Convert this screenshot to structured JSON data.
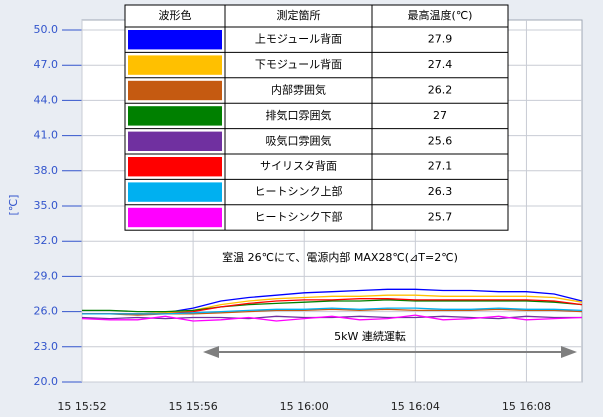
{
  "chart_data": {
    "type": "line",
    "ylabel": "[℃]",
    "x": [
      "15 15:52",
      "15 15:53",
      "15 15:54",
      "15 15:55",
      "15 15:56",
      "15 15:57",
      "15 15:58",
      "15 15:59",
      "15 16:00",
      "15 16:01",
      "15 16:02",
      "15 16:03",
      "15 16:04",
      "15 16:05",
      "15 16:06",
      "15 16:07",
      "15 16:08",
      "15 16:09",
      "15 16:10"
    ],
    "xlim": [
      "15 15:52",
      "15 16:10"
    ],
    "xticks": [
      "15 15:52",
      "15 15:56",
      "15 16:00",
      "15 16:04",
      "15 16:08"
    ],
    "ylim": [
      20,
      50
    ],
    "yticks": [
      {
        "value": 20,
        "label": "20.0"
      },
      {
        "value": 23,
        "label": "23.0"
      },
      {
        "value": 26,
        "label": "26.0"
      },
      {
        "value": 29,
        "label": "29.0"
      },
      {
        "value": 32,
        "label": "32.0"
      },
      {
        "value": 35,
        "label": "35.0"
      },
      {
        "value": 38,
        "label": "38.0"
      },
      {
        "value": 41,
        "label": "41.0"
      },
      {
        "value": 44,
        "label": "44.0"
      },
      {
        "value": 47,
        "label": "47.0"
      },
      {
        "value": 50,
        "label": "50.0"
      }
    ],
    "grid": true,
    "legend_header": [
      "波形色",
      "測定箇所",
      "最高温度(℃)"
    ],
    "series": [
      {
        "name": "上モジュール背面",
        "color": "#0000ff",
        "max": 27.9,
        "values": [
          25.8,
          25.8,
          25.8,
          25.9,
          26.3,
          26.9,
          27.2,
          27.4,
          27.6,
          27.7,
          27.8,
          27.9,
          27.9,
          27.8,
          27.8,
          27.7,
          27.7,
          27.5,
          26.9
        ]
      },
      {
        "name": "下モジュール背面",
        "color": "#ffc000",
        "max": 27.4,
        "values": [
          25.8,
          25.8,
          25.8,
          25.9,
          26.1,
          26.6,
          26.9,
          27.1,
          27.2,
          27.3,
          27.3,
          27.4,
          27.4,
          27.3,
          27.3,
          27.3,
          27.3,
          27.2,
          26.8
        ]
      },
      {
        "name": "内部雰囲気",
        "color": "#c55a11",
        "max": 26.2,
        "values": [
          25.8,
          25.8,
          25.7,
          25.8,
          25.8,
          25.9,
          26.0,
          26.1,
          26.1,
          26.2,
          26.1,
          26.2,
          26.1,
          26.1,
          26.1,
          26.2,
          26.1,
          26.1,
          26.0
        ]
      },
      {
        "name": "排気口雰囲気",
        "color": "#008000",
        "max": 27.0,
        "values": [
          26.1,
          26.1,
          26.0,
          26.0,
          26.1,
          26.4,
          26.6,
          26.7,
          26.8,
          26.9,
          26.9,
          27.0,
          26.9,
          26.9,
          26.9,
          26.9,
          26.9,
          26.8,
          26.6
        ]
      },
      {
        "name": "吸気口雰囲気",
        "color": "#7030a0",
        "max": 25.6,
        "values": [
          25.5,
          25.4,
          25.5,
          25.4,
          25.5,
          25.5,
          25.4,
          25.6,
          25.5,
          25.5,
          25.6,
          25.5,
          25.5,
          25.6,
          25.5,
          25.4,
          25.6,
          25.5,
          25.5
        ]
      },
      {
        "name": "サイリスタ背面",
        "color": "#ff0000",
        "max": 27.1,
        "values": [
          25.8,
          25.8,
          25.8,
          25.8,
          26.0,
          26.4,
          26.7,
          26.9,
          27.0,
          27.0,
          27.1,
          27.1,
          27.0,
          27.0,
          27.0,
          27.0,
          27.0,
          26.9,
          26.6
        ]
      },
      {
        "name": "ヒートシンク上部",
        "color": "#00b0f0",
        "max": 26.3,
        "values": [
          25.8,
          25.8,
          25.8,
          25.8,
          25.9,
          26.0,
          26.1,
          26.2,
          26.2,
          26.3,
          26.2,
          26.3,
          26.3,
          26.2,
          26.2,
          26.3,
          26.2,
          26.2,
          26.1
        ]
      },
      {
        "name": "ヒートシンク下部",
        "color": "#ff00ff",
        "max": 25.7,
        "values": [
          25.4,
          25.3,
          25.3,
          25.6,
          25.2,
          25.3,
          25.5,
          25.2,
          25.4,
          25.6,
          25.3,
          25.4,
          25.7,
          25.3,
          25.4,
          25.6,
          25.3,
          25.4,
          25.5
        ]
      }
    ],
    "annotations": [
      "室温 26℃にて、電源内部 MAX28℃(⊿T=2℃)",
      "5kW 連続運転"
    ]
  }
}
